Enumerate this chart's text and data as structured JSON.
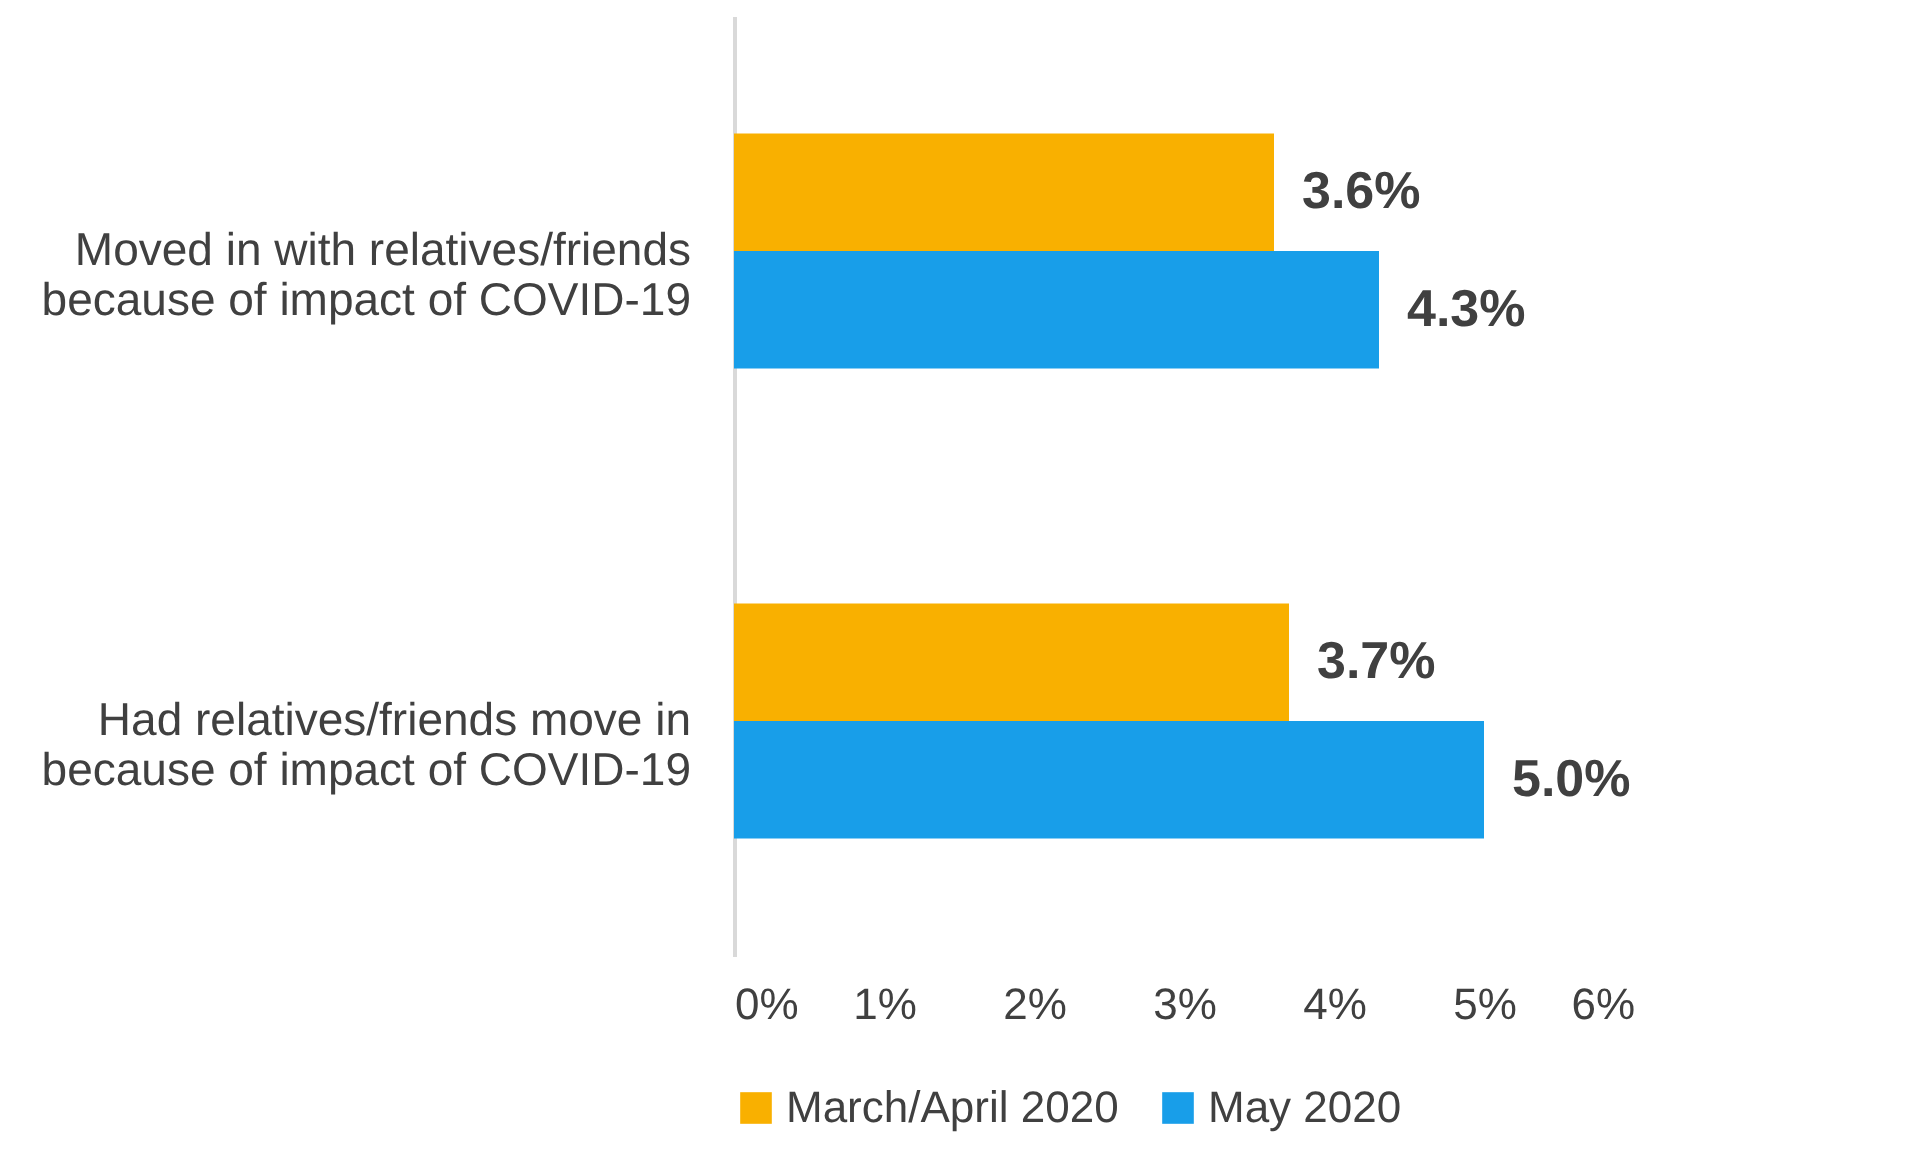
{
  "chart_data": {
    "type": "bar",
    "orientation": "horizontal",
    "categories": [
      "Moved in with relatives/friends\nbecause of impact of COVID-19",
      "Had relatives/friends move in\nbecause of impact of COVID-19"
    ],
    "series": [
      {
        "name": "March/April 2020",
        "color": "#f9b000",
        "values": [
          3.6,
          3.7
        ],
        "value_labels": [
          "3.6%",
          "3.7%"
        ]
      },
      {
        "name": "May 2020",
        "color": "#189ee9",
        "values": [
          4.3,
          5.0
        ],
        "value_labels": [
          "4.3%",
          "5.0%"
        ]
      }
    ],
    "xlim": [
      0,
      6
    ],
    "xticks": [
      {
        "value": 0,
        "label": "0%"
      },
      {
        "value": 1,
        "label": "1%"
      },
      {
        "value": 2,
        "label": "2%"
      },
      {
        "value": 3,
        "label": "3%"
      },
      {
        "value": 4,
        "label": "4%"
      },
      {
        "value": 5,
        "label": "5%"
      },
      {
        "value": 6,
        "label": "6%"
      }
    ],
    "legend": "bottom"
  }
}
